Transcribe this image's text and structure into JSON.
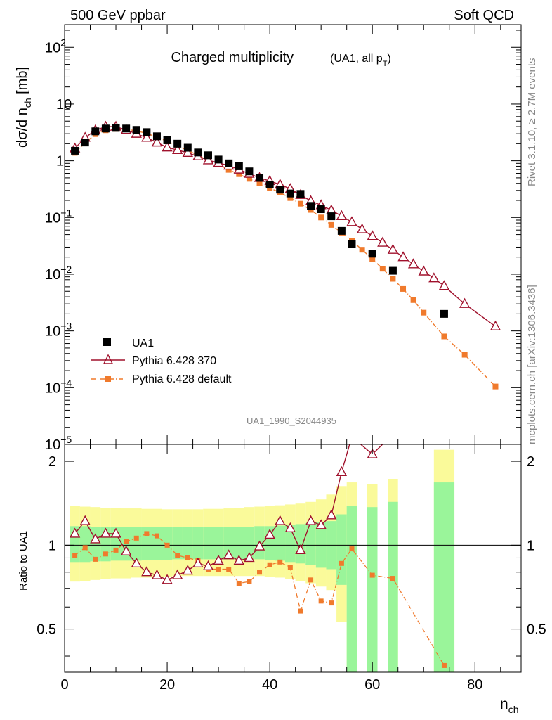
{
  "header": {
    "left": "500 GeV ppbar",
    "right": "Soft QCD"
  },
  "side_text": {
    "top": "Rivet 3.1.10, ≥ 2.7M events",
    "bottom": "mcplots.cern.ch [arXiv:1306.3436]"
  },
  "chart_data": {
    "type": "scatter",
    "title": "Charged multiplicity",
    "subtitle": "(UA1, all p",
    "subtitle_sub": "T",
    "subtitle_end": ")",
    "analysis_id": "UA1_1990_S2044935",
    "main_ylabel": "dσ/d n",
    "main_ylabel_sub": "ch",
    "main_ylabel_unit": " [mb]",
    "ratio_ylabel": "Ratio to UA1",
    "xlabel": "n",
    "xlabel_sub": "ch",
    "xlim": [
      0,
      89
    ],
    "ylim_log10": [
      -5,
      2.4
    ],
    "ratio_ylim": [
      0.35,
      2.3
    ],
    "x_ticks": [
      "0",
      "20",
      "40",
      "60",
      "80"
    ],
    "y_tick_labels": [
      {
        "base": "10",
        "exp": "2"
      },
      {
        "base": "10",
        "exp": ""
      },
      {
        "base": "1",
        "exp": ""
      },
      {
        "base": "10",
        "exp": "−1"
      },
      {
        "base": "10",
        "exp": "−2"
      },
      {
        "base": "10",
        "exp": "−3"
      },
      {
        "base": "10",
        "exp": "−4"
      },
      {
        "base": "10",
        "exp": "−5"
      }
    ],
    "ratio_ticks": [
      "0.5",
      "1",
      "2"
    ],
    "legend": [
      "UA1",
      "Pythia 6.428 370",
      "Pythia 6.428 default"
    ],
    "colors": {
      "data": "#000000",
      "p370": "#a0112c",
      "pdef": "#f07a2c",
      "band_inner": "#9af59a",
      "band_outer": "#fafa9a"
    },
    "series": [
      {
        "name": "UA1",
        "x": [
          2,
          4,
          6,
          8,
          10,
          12,
          14,
          16,
          18,
          20,
          22,
          24,
          26,
          28,
          30,
          32,
          34,
          36,
          38,
          40,
          42,
          44,
          46,
          48,
          50,
          52,
          54,
          56,
          60,
          64,
          74
        ],
        "y": [
          1.5,
          2.1,
          3.3,
          3.7,
          3.8,
          3.7,
          3.5,
          3.2,
          2.7,
          2.3,
          2.0,
          1.7,
          1.4,
          1.25,
          1.05,
          0.9,
          0.8,
          0.65,
          0.5,
          0.38,
          0.31,
          0.265,
          0.26,
          0.16,
          0.14,
          0.105,
          0.058,
          0.034,
          0.023,
          0.0115,
          0.002
        ]
      },
      {
        "name": "Pythia 6.428 370",
        "x": [
          2,
          4,
          6,
          8,
          10,
          12,
          14,
          16,
          18,
          20,
          22,
          24,
          26,
          28,
          30,
          32,
          34,
          36,
          38,
          40,
          42,
          44,
          46,
          48,
          50,
          52,
          54,
          56,
          58,
          60,
          62,
          64,
          66,
          68,
          70,
          72,
          74,
          78,
          84
        ],
        "y": [
          1.65,
          2.55,
          3.45,
          4.0,
          4.0,
          3.5,
          3.0,
          2.55,
          2.1,
          1.72,
          1.55,
          1.38,
          1.2,
          1.02,
          0.92,
          0.82,
          0.7,
          0.59,
          0.5,
          0.44,
          0.38,
          0.32,
          0.25,
          0.195,
          0.165,
          0.134,
          0.106,
          0.083,
          0.062,
          0.047,
          0.036,
          0.027,
          0.02,
          0.015,
          0.0112,
          0.0085,
          0.0062,
          0.003,
          0.0012
        ]
      },
      {
        "name": "Pythia 6.428 default",
        "x": [
          2,
          4,
          6,
          8,
          10,
          12,
          14,
          16,
          18,
          20,
          22,
          24,
          26,
          28,
          30,
          32,
          34,
          36,
          38,
          40,
          42,
          44,
          46,
          48,
          50,
          52,
          54,
          56,
          58,
          60,
          62,
          64,
          66,
          68,
          70,
          74,
          78,
          84
        ],
        "y": [
          1.38,
          2.05,
          2.95,
          3.45,
          3.65,
          3.6,
          3.35,
          3.05,
          2.6,
          2.2,
          1.85,
          1.52,
          1.26,
          1.02,
          0.86,
          0.69,
          0.58,
          0.48,
          0.4,
          0.33,
          0.275,
          0.22,
          0.175,
          0.136,
          0.1,
          0.074,
          0.054,
          0.039,
          0.027,
          0.0185,
          0.0125,
          0.0083,
          0.0055,
          0.0035,
          0.0021,
          0.0008,
          0.00038,
          0.000105
        ]
      }
    ],
    "ratio_series": [
      {
        "name": "Pythia 6.428 370",
        "x": [
          2,
          4,
          6,
          8,
          10,
          12,
          14,
          16,
          18,
          20,
          22,
          24,
          26,
          28,
          30,
          32,
          34,
          36,
          38,
          40,
          42,
          44,
          46,
          48,
          50,
          52,
          54,
          56,
          60,
          64
        ],
        "y": [
          1.1,
          1.22,
          1.05,
          1.1,
          1.1,
          0.95,
          0.86,
          0.8,
          0.78,
          0.75,
          0.78,
          0.81,
          0.86,
          0.84,
          0.88,
          0.92,
          0.88,
          0.9,
          0.99,
          1.09,
          1.22,
          1.15,
          0.96,
          1.22,
          1.18,
          1.28,
          1.83,
          2.45,
          2.12,
          2.5
        ]
      },
      {
        "name": "Pythia 6.428 default",
        "x": [
          2,
          4,
          6,
          8,
          10,
          12,
          14,
          16,
          18,
          20,
          22,
          24,
          26,
          28,
          30,
          32,
          34,
          36,
          38,
          40,
          42,
          44,
          46,
          48,
          50,
          52,
          54,
          56,
          60,
          64,
          74
        ],
        "y": [
          0.92,
          0.98,
          0.89,
          0.93,
          0.96,
          1.03,
          1.06,
          1.1,
          1.08,
          1.0,
          0.92,
          0.9,
          0.88,
          0.82,
          0.82,
          0.82,
          0.73,
          0.74,
          0.8,
          0.85,
          0.87,
          0.83,
          0.58,
          0.75,
          0.63,
          0.62,
          0.86,
          0.97,
          0.78,
          0.76,
          0.37
        ]
      }
    ],
    "uncertainty_bands": {
      "x_edges": [
        1,
        3,
        5,
        7,
        9,
        11,
        13,
        15,
        17,
        19,
        21,
        23,
        25,
        27,
        29,
        31,
        33,
        35,
        37,
        39,
        41,
        43,
        45,
        47,
        49,
        51,
        53,
        55,
        57,
        59,
        61,
        63,
        65,
        72,
        76
      ],
      "outer_lo": [
        0.74,
        0.745,
        0.75,
        0.755,
        0.76,
        0.76,
        0.765,
        0.765,
        0.77,
        0.77,
        0.775,
        0.775,
        0.775,
        0.775,
        0.775,
        0.775,
        0.775,
        0.775,
        0.775,
        0.77,
        0.765,
        0.755,
        0.745,
        0.73,
        0.71,
        0.69,
        0.53,
        0.35,
        null,
        0.35,
        null,
        0.35,
        null,
        0.35
      ],
      "outer_hi": [
        1.38,
        1.375,
        1.37,
        1.36,
        1.36,
        1.355,
        1.355,
        1.35,
        1.35,
        1.345,
        1.345,
        1.345,
        1.345,
        1.35,
        1.35,
        1.355,
        1.36,
        1.37,
        1.375,
        1.38,
        1.39,
        1.4,
        1.41,
        1.43,
        1.46,
        1.52,
        1.63,
        1.68,
        null,
        1.66,
        null,
        1.73,
        null,
        2.2
      ],
      "inner_lo": [
        0.87,
        0.87,
        0.875,
        0.875,
        0.88,
        0.88,
        0.88,
        0.885,
        0.885,
        0.885,
        0.89,
        0.89,
        0.89,
        0.89,
        0.89,
        0.89,
        0.89,
        0.89,
        0.89,
        0.885,
        0.88,
        0.87,
        0.86,
        0.85,
        0.83,
        0.82,
        0.72,
        0.35,
        null,
        0.35,
        null,
        0.35,
        null,
        0.35
      ],
      "inner_hi": [
        1.17,
        1.17,
        1.165,
        1.165,
        1.165,
        1.16,
        1.16,
        1.16,
        1.16,
        1.16,
        1.16,
        1.16,
        1.16,
        1.16,
        1.16,
        1.16,
        1.165,
        1.165,
        1.17,
        1.17,
        1.175,
        1.18,
        1.19,
        1.2,
        1.21,
        1.22,
        1.29,
        1.38,
        null,
        1.37,
        null,
        1.43,
        null,
        1.68
      ]
    }
  }
}
